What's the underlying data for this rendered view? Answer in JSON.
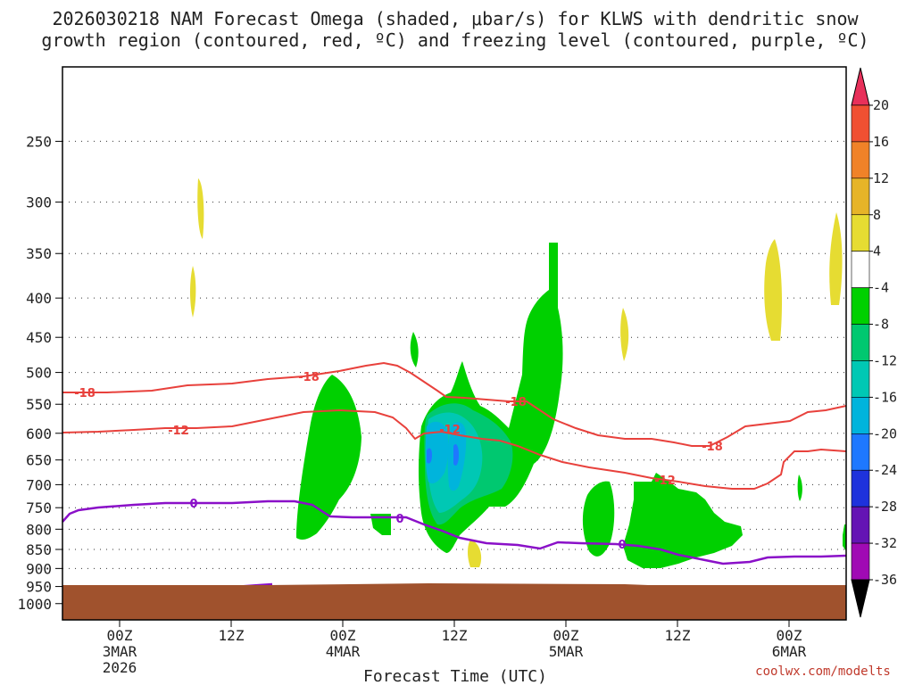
{
  "title_line1": "2026030218 NAM Forecast Omega (shaded, μbar/s) for KLWS with dendritic snow",
  "title_line2": "growth region (contoured, red, ºC) and freezing level (contoured, purple, ºC)",
  "credit": "coolwx.com/modelts",
  "colors": {
    "ground": "#a0522d",
    "green": "#00d000",
    "light_green": "#00c870",
    "teal": "#00c8b4",
    "cyan": "#00b4dc",
    "blue": "#1e78ff",
    "yellow": "#e6dc32",
    "red_contour": "#e8413c",
    "purple_contour": "#8a10c8"
  },
  "chart_data": {
    "type": "heatmap",
    "xlabel": "Forecast Time (UTC)",
    "ylabel": "",
    "y_ticks": [
      "250",
      "300",
      "350",
      "400",
      "450",
      "500",
      "550",
      "600",
      "650",
      "700",
      "750",
      "800",
      "850",
      "900",
      "950",
      "1000"
    ],
    "x_ticks": [
      {
        "hour": "00Z",
        "date": "3MAR",
        "year": "2026"
      },
      {
        "hour": "12Z",
        "date": "",
        "year": ""
      },
      {
        "hour": "00Z",
        "date": "4MAR",
        "year": ""
      },
      {
        "hour": "12Z",
        "date": "",
        "year": ""
      },
      {
        "hour": "00Z",
        "date": "5MAR",
        "year": ""
      },
      {
        "hour": "12Z",
        "date": "",
        "year": ""
      },
      {
        "hour": "00Z",
        "date": "6MAR",
        "year": ""
      }
    ],
    "colorbar": {
      "labels": [
        "20",
        "16",
        "12",
        "8",
        "4",
        "-4",
        "-8",
        "-12",
        "-16",
        "-20",
        "-24",
        "-28",
        "-32",
        "-36"
      ],
      "colors": [
        "#e8305a",
        "#f05032",
        "#f08228",
        "#e6b428",
        "#e6dc32",
        "#ffffff",
        "#00d000",
        "#00c870",
        "#00c8b4",
        "#00b4dc",
        "#1e78ff",
        "#1e32dc",
        "#6414b4",
        "#a00ab4",
        "#a0a0a0",
        "#000000"
      ]
    },
    "contours": [
      {
        "name": "dendritic snow growth region",
        "color": "red",
        "labels": [
          "-18",
          "-12"
        ]
      },
      {
        "name": "freezing level",
        "color": "purple",
        "labels": [
          "0"
        ]
      }
    ]
  }
}
